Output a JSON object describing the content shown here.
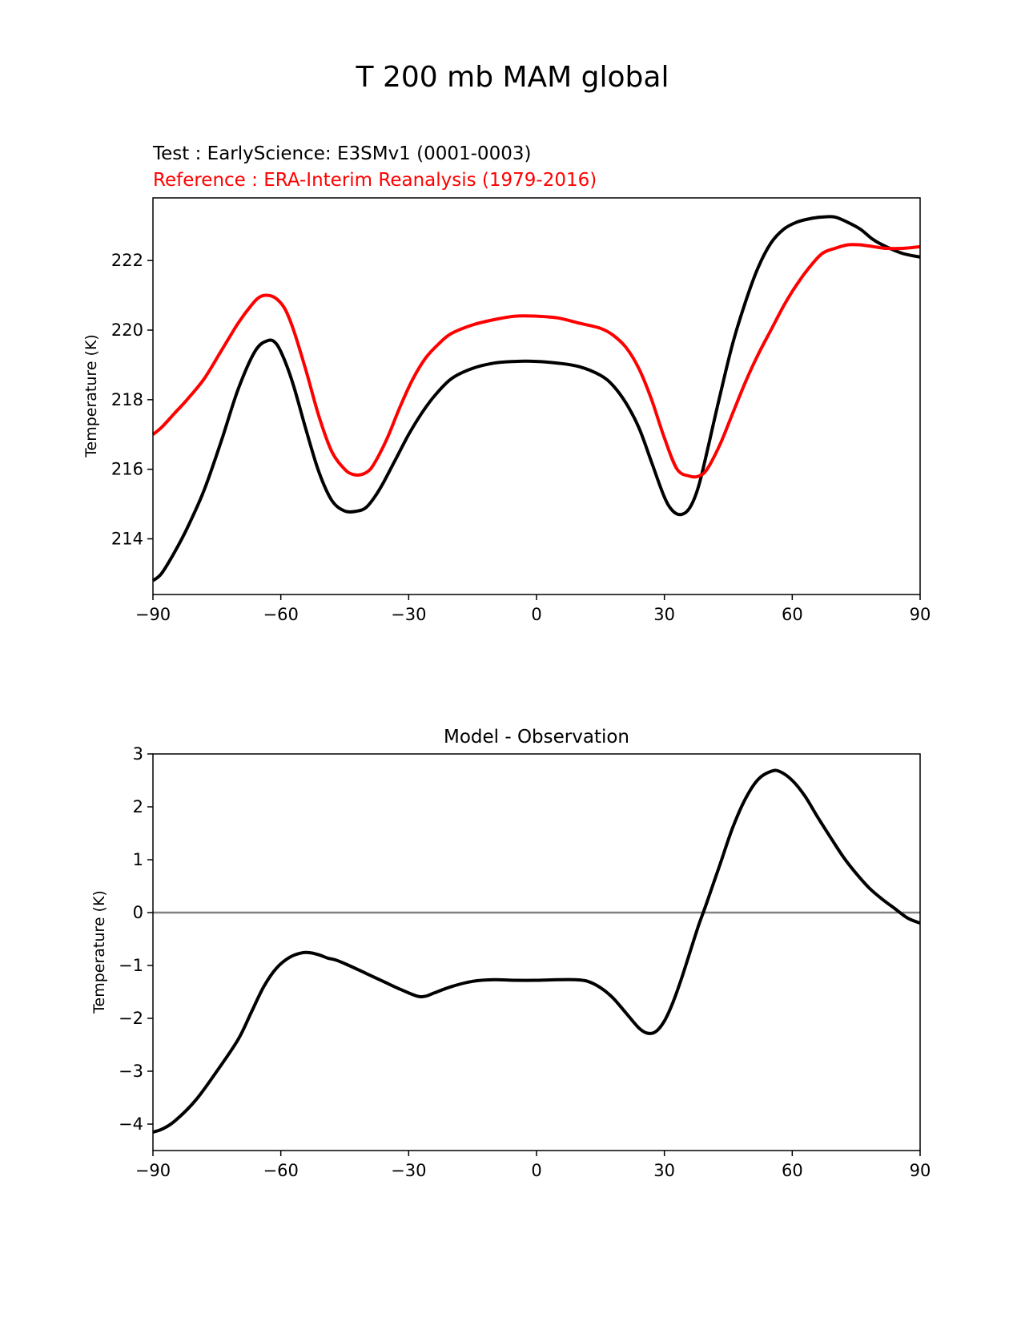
{
  "figure": {
    "title": "T 200 mb MAM global"
  },
  "colors": {
    "test": "#000000",
    "reference": "#ff0000",
    "zero_line": "#808080"
  },
  "chart_data": [
    {
      "type": "line",
      "title": "",
      "subtitles": [
        {
          "text": "Test : EarlyScience: E3SMv1 (0001-0003)",
          "color": "#000000"
        },
        {
          "text": "Reference : ERA-Interim Reanalysis (1979-2016)",
          "color": "#ff0000"
        }
      ],
      "xlabel": "",
      "ylabel": "Temperature (K)",
      "xlim": [
        -90,
        90
      ],
      "ylim": [
        212.4,
        223.8
      ],
      "xticks": [
        -90,
        -60,
        -30,
        0,
        30,
        60,
        90
      ],
      "xtick_labels": [
        "−90",
        "−60",
        "−30",
        "0",
        "30",
        "60",
        "90"
      ],
      "yticks": [
        214,
        216,
        218,
        220,
        222
      ],
      "ytick_labels": [
        "214",
        "216",
        "218",
        "220",
        "222"
      ],
      "grid": false,
      "series": [
        {
          "role": "test",
          "color": "#000000",
          "x": [
            -90,
            -88,
            -85,
            -82,
            -78,
            -74,
            -70,
            -66,
            -63,
            -61,
            -59,
            -57,
            -54,
            -51,
            -48,
            -45,
            -42,
            -40,
            -38,
            -36,
            -33,
            -30,
            -27,
            -24,
            -20,
            -15,
            -10,
            -5,
            0,
            5,
            10,
            15,
            18,
            21,
            24,
            27,
            30,
            32,
            34,
            36,
            38,
            40,
            43,
            46,
            49,
            52,
            55,
            58,
            61,
            64,
            67,
            70,
            73,
            76,
            79,
            82,
            86,
            90
          ],
          "values": [
            212.8,
            213.0,
            213.6,
            214.3,
            215.4,
            216.8,
            218.3,
            219.4,
            219.7,
            219.6,
            219.1,
            218.4,
            217.1,
            215.9,
            215.1,
            214.8,
            214.8,
            214.9,
            215.2,
            215.6,
            216.3,
            217.0,
            217.6,
            218.1,
            218.6,
            218.9,
            219.05,
            219.1,
            219.1,
            219.05,
            218.95,
            218.7,
            218.4,
            217.9,
            217.2,
            216.2,
            215.2,
            214.8,
            214.7,
            214.9,
            215.5,
            216.5,
            218.1,
            219.6,
            220.8,
            221.8,
            222.5,
            222.9,
            223.1,
            223.2,
            223.25,
            223.25,
            223.1,
            222.9,
            222.6,
            222.4,
            222.2,
            222.1
          ]
        },
        {
          "role": "reference",
          "color": "#ff0000",
          "x": [
            -90,
            -88,
            -85,
            -82,
            -78,
            -74,
            -70,
            -67,
            -65,
            -63,
            -61,
            -59,
            -57,
            -54,
            -51,
            -48,
            -45,
            -43,
            -41,
            -39,
            -37,
            -35,
            -32,
            -29,
            -26,
            -23,
            -20,
            -15,
            -10,
            -5,
            0,
            5,
            10,
            15,
            18,
            21,
            24,
            27,
            30,
            33,
            36,
            38,
            40,
            43,
            46,
            49,
            52,
            55,
            58,
            61,
            64,
            67,
            70,
            73,
            76,
            79,
            82,
            86,
            90
          ],
          "values": [
            217.0,
            217.2,
            217.6,
            218.0,
            218.6,
            219.4,
            220.2,
            220.7,
            220.95,
            221.0,
            220.9,
            220.6,
            220.0,
            218.8,
            217.5,
            216.5,
            216.0,
            215.85,
            215.85,
            216.0,
            216.4,
            216.9,
            217.8,
            218.6,
            219.2,
            219.6,
            219.9,
            220.15,
            220.3,
            220.4,
            220.4,
            220.35,
            220.2,
            220.05,
            219.85,
            219.5,
            218.9,
            218.0,
            216.9,
            216.0,
            215.8,
            215.8,
            216.0,
            216.7,
            217.6,
            218.5,
            219.3,
            220.0,
            220.7,
            221.3,
            221.8,
            222.2,
            222.35,
            222.45,
            222.45,
            222.4,
            222.35,
            222.35,
            222.4
          ]
        }
      ]
    },
    {
      "type": "line",
      "title": "Model - Observation",
      "xlabel": "",
      "ylabel": "Temperature (K)",
      "xlim": [
        -90,
        90
      ],
      "ylim": [
        -4.5,
        3.0
      ],
      "xticks": [
        -90,
        -60,
        -30,
        0,
        30,
        60,
        90
      ],
      "xtick_labels": [
        "−90",
        "−60",
        "−30",
        "0",
        "30",
        "60",
        "90"
      ],
      "yticks": [
        -4,
        -3,
        -2,
        -1,
        0,
        1,
        2,
        3
      ],
      "ytick_labels": [
        "−4",
        "−3",
        "−2",
        "−1",
        "0",
        "1",
        "2",
        "3"
      ],
      "grid": false,
      "reference_line": {
        "y": 0,
        "color": "#808080"
      },
      "series": [
        {
          "role": "difference",
          "color": "#000000",
          "x": [
            -90,
            -88,
            -85,
            -80,
            -75,
            -70,
            -67,
            -64,
            -61,
            -58,
            -55,
            -53,
            -51,
            -49,
            -47,
            -44,
            -40,
            -36,
            -32,
            -28,
            -26,
            -24,
            -20,
            -15,
            -10,
            -5,
            0,
            5,
            9,
            12,
            15,
            18,
            21,
            24,
            26,
            28,
            30,
            32,
            34,
            36,
            38,
            40,
            43,
            46,
            49,
            52,
            55,
            57,
            60,
            63,
            66,
            69,
            72,
            75,
            78,
            81,
            84,
            87,
            90
          ],
          "values": [
            -4.15,
            -4.1,
            -3.95,
            -3.55,
            -3.0,
            -2.4,
            -1.9,
            -1.4,
            -1.05,
            -0.85,
            -0.76,
            -0.76,
            -0.8,
            -0.86,
            -0.9,
            -1.0,
            -1.15,
            -1.3,
            -1.45,
            -1.58,
            -1.58,
            -1.52,
            -1.4,
            -1.3,
            -1.27,
            -1.28,
            -1.28,
            -1.27,
            -1.27,
            -1.3,
            -1.42,
            -1.62,
            -1.9,
            -2.18,
            -2.28,
            -2.25,
            -2.05,
            -1.7,
            -1.25,
            -0.75,
            -0.25,
            0.2,
            0.9,
            1.6,
            2.15,
            2.52,
            2.67,
            2.67,
            2.5,
            2.2,
            1.8,
            1.42,
            1.05,
            0.74,
            0.47,
            0.26,
            0.08,
            -0.1,
            -0.2
          ]
        }
      ]
    }
  ]
}
